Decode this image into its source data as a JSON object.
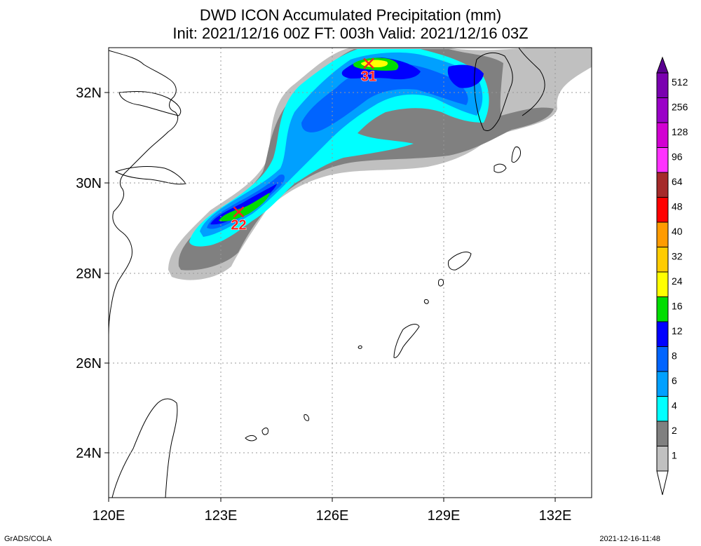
{
  "title": {
    "line1": "DWD ICON Accumulated Precipitation (mm)",
    "line2": "Init: 2021/12/16 00Z  FT: 003h  Valid: 2021/12/16 03Z"
  },
  "axes": {
    "x_labels": [
      "120E",
      "123E",
      "126E",
      "129E",
      "132E"
    ],
    "y_labels": [
      "32N",
      "30N",
      "28N",
      "26N",
      "24N"
    ]
  },
  "maxima": [
    {
      "label": "31",
      "lon": 127.0,
      "lat": 32.65
    },
    {
      "label": "22",
      "lon": 123.5,
      "lat": 29.35
    }
  ],
  "colorbar": {
    "labels": [
      "512",
      "256",
      "128",
      "96",
      "64",
      "48",
      "40",
      "32",
      "24",
      "16",
      "12",
      "8",
      "6",
      "4",
      "2",
      "1"
    ],
    "colors": [
      "#7a00b0",
      "#9a00c8",
      "#d200d2",
      "#ff32ff",
      "#a52a2a",
      "#ff0000",
      "#ff9b00",
      "#ffcc00",
      "#ffff00",
      "#00dd00",
      "#0000ff",
      "#0064ff",
      "#00a0ff",
      "#00ffff",
      "#808080",
      "#c0c0c0"
    ]
  },
  "footer": {
    "left": "GrADS/COLA",
    "right": "2021-12-16-11:48"
  }
}
